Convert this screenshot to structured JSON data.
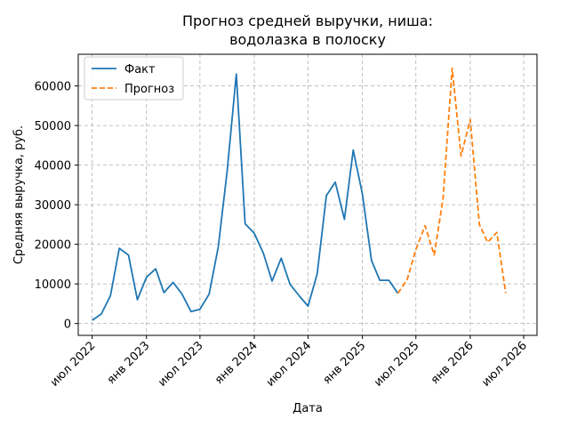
{
  "chart_data": {
    "type": "line",
    "title": [
      "Прогноз средней выручки, ниша:",
      "водолазка в полоску"
    ],
    "xlabel": "Дата",
    "ylabel": "Средняя выручка, руб.",
    "ylim": [
      -3000,
      68000
    ],
    "xlim": [
      "2022-05-15",
      "2026-08-15"
    ],
    "yticks": [
      0,
      10000,
      20000,
      30000,
      40000,
      50000,
      60000
    ],
    "xticks": [
      {
        "date": "2022-07-01",
        "label": "июл 2022"
      },
      {
        "date": "2023-01-01",
        "label": "янв 2023"
      },
      {
        "date": "2023-07-01",
        "label": "июл 2023"
      },
      {
        "date": "2024-01-01",
        "label": "янв 2024"
      },
      {
        "date": "2024-07-01",
        "label": "июл 2024"
      },
      {
        "date": "2025-01-01",
        "label": "янв 2025"
      },
      {
        "date": "2025-07-01",
        "label": "июл 2025"
      },
      {
        "date": "2026-01-01",
        "label": "янв 2026"
      },
      {
        "date": "2026-07-01",
        "label": "июл 2026"
      }
    ],
    "grid": true,
    "legend_position": "top-left",
    "series": [
      {
        "name": "Факт",
        "color": "#1f77b4",
        "style": "solid",
        "points": [
          [
            "2022-07-01",
            800
          ],
          [
            "2022-08-01",
            2400
          ],
          [
            "2022-09-01",
            7000
          ],
          [
            "2022-10-01",
            19000
          ],
          [
            "2022-11-01",
            17300
          ],
          [
            "2022-12-01",
            6000
          ],
          [
            "2023-01-01",
            11700
          ],
          [
            "2023-02-01",
            13800
          ],
          [
            "2023-03-01",
            7800
          ],
          [
            "2023-04-01",
            10400
          ],
          [
            "2023-05-01",
            7500
          ],
          [
            "2023-06-01",
            3000
          ],
          [
            "2023-07-01",
            3600
          ],
          [
            "2023-08-01",
            7400
          ],
          [
            "2023-09-01",
            19300
          ],
          [
            "2023-10-01",
            38500
          ],
          [
            "2023-11-01",
            63000
          ],
          [
            "2023-12-01",
            25200
          ],
          [
            "2024-01-01",
            22800
          ],
          [
            "2024-02-01",
            17700
          ],
          [
            "2024-03-01",
            10700
          ],
          [
            "2024-04-01",
            16500
          ],
          [
            "2024-05-01",
            9900
          ],
          [
            "2024-06-01",
            7000
          ],
          [
            "2024-07-01",
            4400
          ],
          [
            "2024-08-01",
            12600
          ],
          [
            "2024-09-01",
            32300
          ],
          [
            "2024-10-01",
            35700
          ],
          [
            "2024-11-01",
            26300
          ],
          [
            "2024-12-01",
            43800
          ],
          [
            "2025-01-01",
            32700
          ],
          [
            "2025-02-01",
            15900
          ],
          [
            "2025-03-01",
            10900
          ],
          [
            "2025-04-01",
            10900
          ],
          [
            "2025-05-01",
            7600
          ]
        ]
      },
      {
        "name": "Прогноз",
        "color": "#ff7f0e",
        "style": "dashed",
        "points": [
          [
            "2025-05-01",
            7600
          ],
          [
            "2025-06-01",
            11000
          ],
          [
            "2025-07-01",
            18700
          ],
          [
            "2025-08-01",
            24700
          ],
          [
            "2025-09-01",
            17300
          ],
          [
            "2025-10-01",
            31500
          ],
          [
            "2025-11-01",
            64500
          ],
          [
            "2025-12-01",
            42300
          ],
          [
            "2026-01-01",
            51500
          ],
          [
            "2026-02-01",
            25000
          ],
          [
            "2026-03-01",
            20500
          ],
          [
            "2026-04-01",
            23000
          ],
          [
            "2026-05-01",
            7700
          ]
        ]
      }
    ]
  }
}
